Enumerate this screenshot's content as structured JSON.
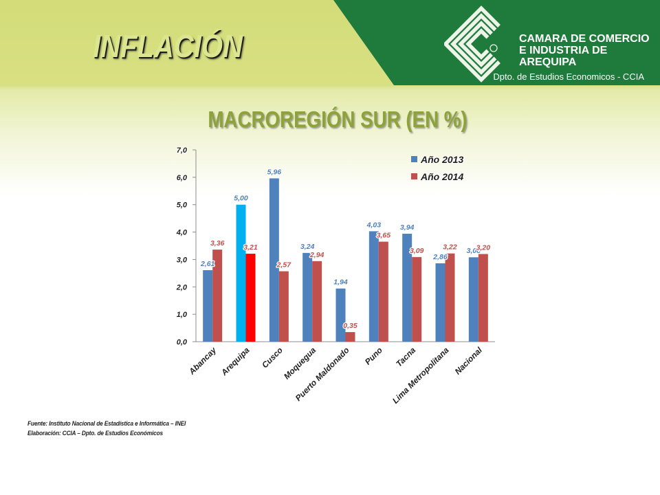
{
  "theme": {
    "banner": "#1E7B3B",
    "slide_title": "#DCE690",
    "chart_title": "#8DA33A"
  },
  "slide": {
    "title": "INFLACIÓN"
  },
  "header": {
    "logo_icon": "ccia-logo-icon",
    "organization_lines": [
      "CAMARA DE COMERCIO",
      "E INDUSTRIA DE",
      "AREQUIPA"
    ],
    "department": "Dpto. de Estudios Economicos - CCIA"
  },
  "chart_data": {
    "type": "bar",
    "title": "MACROREGIÓN SUR (EN %)",
    "categories": [
      "Abancay",
      "Arequipa",
      "Cusco",
      "Moquegua",
      "Puerto Maldonado",
      "Puno",
      "Tacna",
      "Lima Metropolitana",
      "Nacional"
    ],
    "series": [
      {
        "name": "Año 2013",
        "color": "#4F81BD",
        "values": [
          2.61,
          5.0,
          5.96,
          3.24,
          1.94,
          4.03,
          3.94,
          2.86,
          3.08
        ]
      },
      {
        "name": "Año 2014",
        "color": "#C0504D",
        "values": [
          3.36,
          3.21,
          2.57,
          2.94,
          0.35,
          3.65,
          3.09,
          3.22,
          3.2
        ]
      }
    ],
    "highlight": {
      "category": "Arequipa",
      "colors": [
        "#00B0F0",
        "#FF0000"
      ]
    },
    "ylim": [
      0,
      7
    ],
    "yticks": [
      "0,0",
      "1,0",
      "2,0",
      "3,0",
      "4,0",
      "5,0",
      "6,0",
      "7,0"
    ],
    "grid": false,
    "legend": "top-right"
  },
  "footer": {
    "source": "Fuente: Instituto Nacional de Estadística e Informática – INEI",
    "credit": "Elaboración: CCIA – Dpto. de Estudios Económicos"
  }
}
